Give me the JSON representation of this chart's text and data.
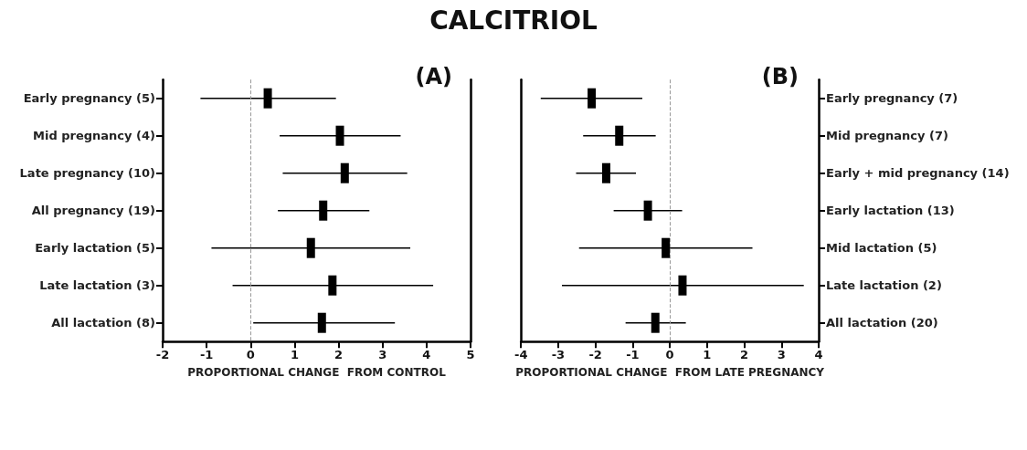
{
  "chart_data": [
    {
      "type": "scatter",
      "title": "CALCITRIOL",
      "xlabel": "PROPORTIONAL CHANGE  FROM CONTROL",
      "annotations": [
        "(A)"
      ],
      "categories": [
        "Early pregnancy (5)",
        "Mid pregnancy (4)",
        "Late pregnancy (10)",
        "All pregnancy (19)",
        "Early lactation (5)",
        "Late lactation (3)",
        "All lactation (8)"
      ],
      "series": [
        {
          "color": "#000000",
          "values": [
            0.39,
            2.03,
            2.14,
            1.65,
            1.37,
            1.86,
            1.62
          ],
          "errors": [
            [
              -1.14,
              1.94
            ],
            [
              0.66,
              3.41
            ],
            [
              0.73,
              3.56
            ],
            [
              0.62,
              2.7
            ],
            [
              -0.89,
              3.63
            ],
            [
              -0.41,
              4.15
            ],
            [
              0.06,
              3.28
            ]
          ]
        }
      ],
      "orientation": "horizontal",
      "marker": "square",
      "xlim": [
        -2,
        5
      ],
      "xticks": [
        -2,
        -1,
        0,
        1,
        2,
        3,
        4,
        5
      ],
      "grid": false,
      "legend": false,
      "ref_lines": [
        {
          "axis": "x",
          "value": 0,
          "color": "#999999",
          "line_style": "dashed"
        }
      ]
    },
    {
      "type": "scatter",
      "xlabel": "PROPORTIONAL CHANGE  FROM LATE PREGNANCY",
      "annotations": [
        "(B)"
      ],
      "categories": [
        "Early pregnancy (7)",
        "Mid pregnancy (7)",
        "Early + mid pregnancy (14)",
        "Early lactation (13)",
        "Mid lactation (5)",
        "Late lactation (2)",
        "All lactation (20)"
      ],
      "series": [
        {
          "color": "#000000",
          "values": [
            -2.1,
            -1.36,
            -1.71,
            -0.59,
            -0.11,
            0.34,
            -0.39
          ],
          "errors": [
            [
              -3.47,
              -0.74
            ],
            [
              -2.33,
              -0.38
            ],
            [
              -2.52,
              -0.91
            ],
            [
              -1.51,
              0.33
            ],
            [
              -2.44,
              2.22
            ],
            [
              -2.9,
              3.6
            ],
            [
              -1.19,
              0.43
            ]
          ]
        }
      ],
      "orientation": "horizontal",
      "marker": "square",
      "xlim": [
        -4,
        4
      ],
      "xticks": [
        -4,
        -3,
        -2,
        -1,
        0,
        1,
        2,
        3,
        4
      ],
      "grid": false,
      "legend": false,
      "ref_lines": [
        {
          "axis": "x",
          "value": 0,
          "color": "#999999",
          "line_style": "dashed"
        }
      ]
    }
  ]
}
